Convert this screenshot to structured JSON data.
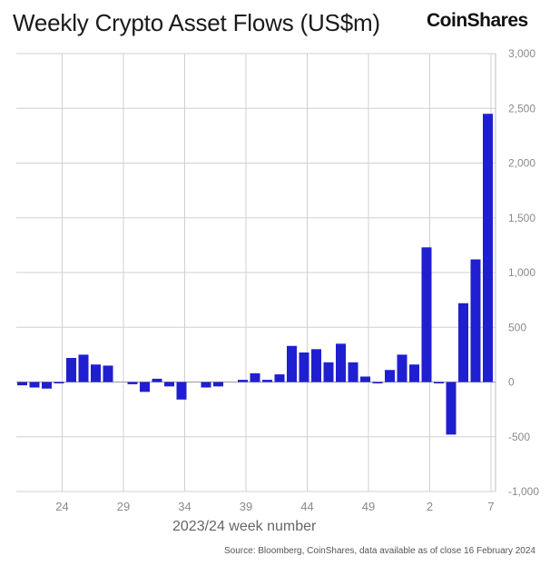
{
  "title": "Weekly Crypto Asset Flows (US$m)",
  "logo_text": "CoinShares",
  "source": "Source: Bloomberg, CoinShares, data available as of close 16 February 2024",
  "colors": {
    "bar": "#1f1fd1",
    "grid": "#d0d0d0",
    "axis_text": "#8a8a8a"
  },
  "chart_data": {
    "type": "bar",
    "title": "Weekly Crypto Asset Flows (US$m)",
    "xlabel": "2023/24 week number",
    "ylabel": "",
    "ylim": [
      -1000,
      3000
    ],
    "yticks": [
      3000,
      2500,
      2000,
      1500,
      1000,
      500,
      0,
      -500,
      -1000
    ],
    "ytick_labels": [
      "3,000",
      "2,500",
      "2,000",
      "1,500",
      "1,000",
      "500",
      "0",
      "-500",
      "-1,000"
    ],
    "xtick_labels": [
      "24",
      "29",
      "34",
      "39",
      "44",
      "49",
      "2",
      "7"
    ],
    "grid": true,
    "categories": [
      "21",
      "22",
      "23",
      "24",
      "25",
      "26",
      "27",
      "28",
      "29",
      "30",
      "31",
      "32",
      "33",
      "34",
      "35",
      "36",
      "37",
      "38",
      "39",
      "40",
      "41",
      "42",
      "43",
      "44",
      "45",
      "46",
      "47",
      "48",
      "49",
      "50",
      "51",
      "52",
      "1",
      "2",
      "3",
      "4",
      "5",
      "6",
      "7"
    ],
    "values": [
      -30,
      -50,
      -60,
      -10,
      220,
      250,
      160,
      150,
      0,
      -20,
      -90,
      30,
      -40,
      -160,
      0,
      -50,
      -40,
      0,
      20,
      80,
      20,
      70,
      330,
      270,
      300,
      180,
      350,
      180,
      50,
      -10,
      110,
      250,
      160,
      1230,
      -10,
      -480,
      720,
      1120,
      2450
    ]
  }
}
